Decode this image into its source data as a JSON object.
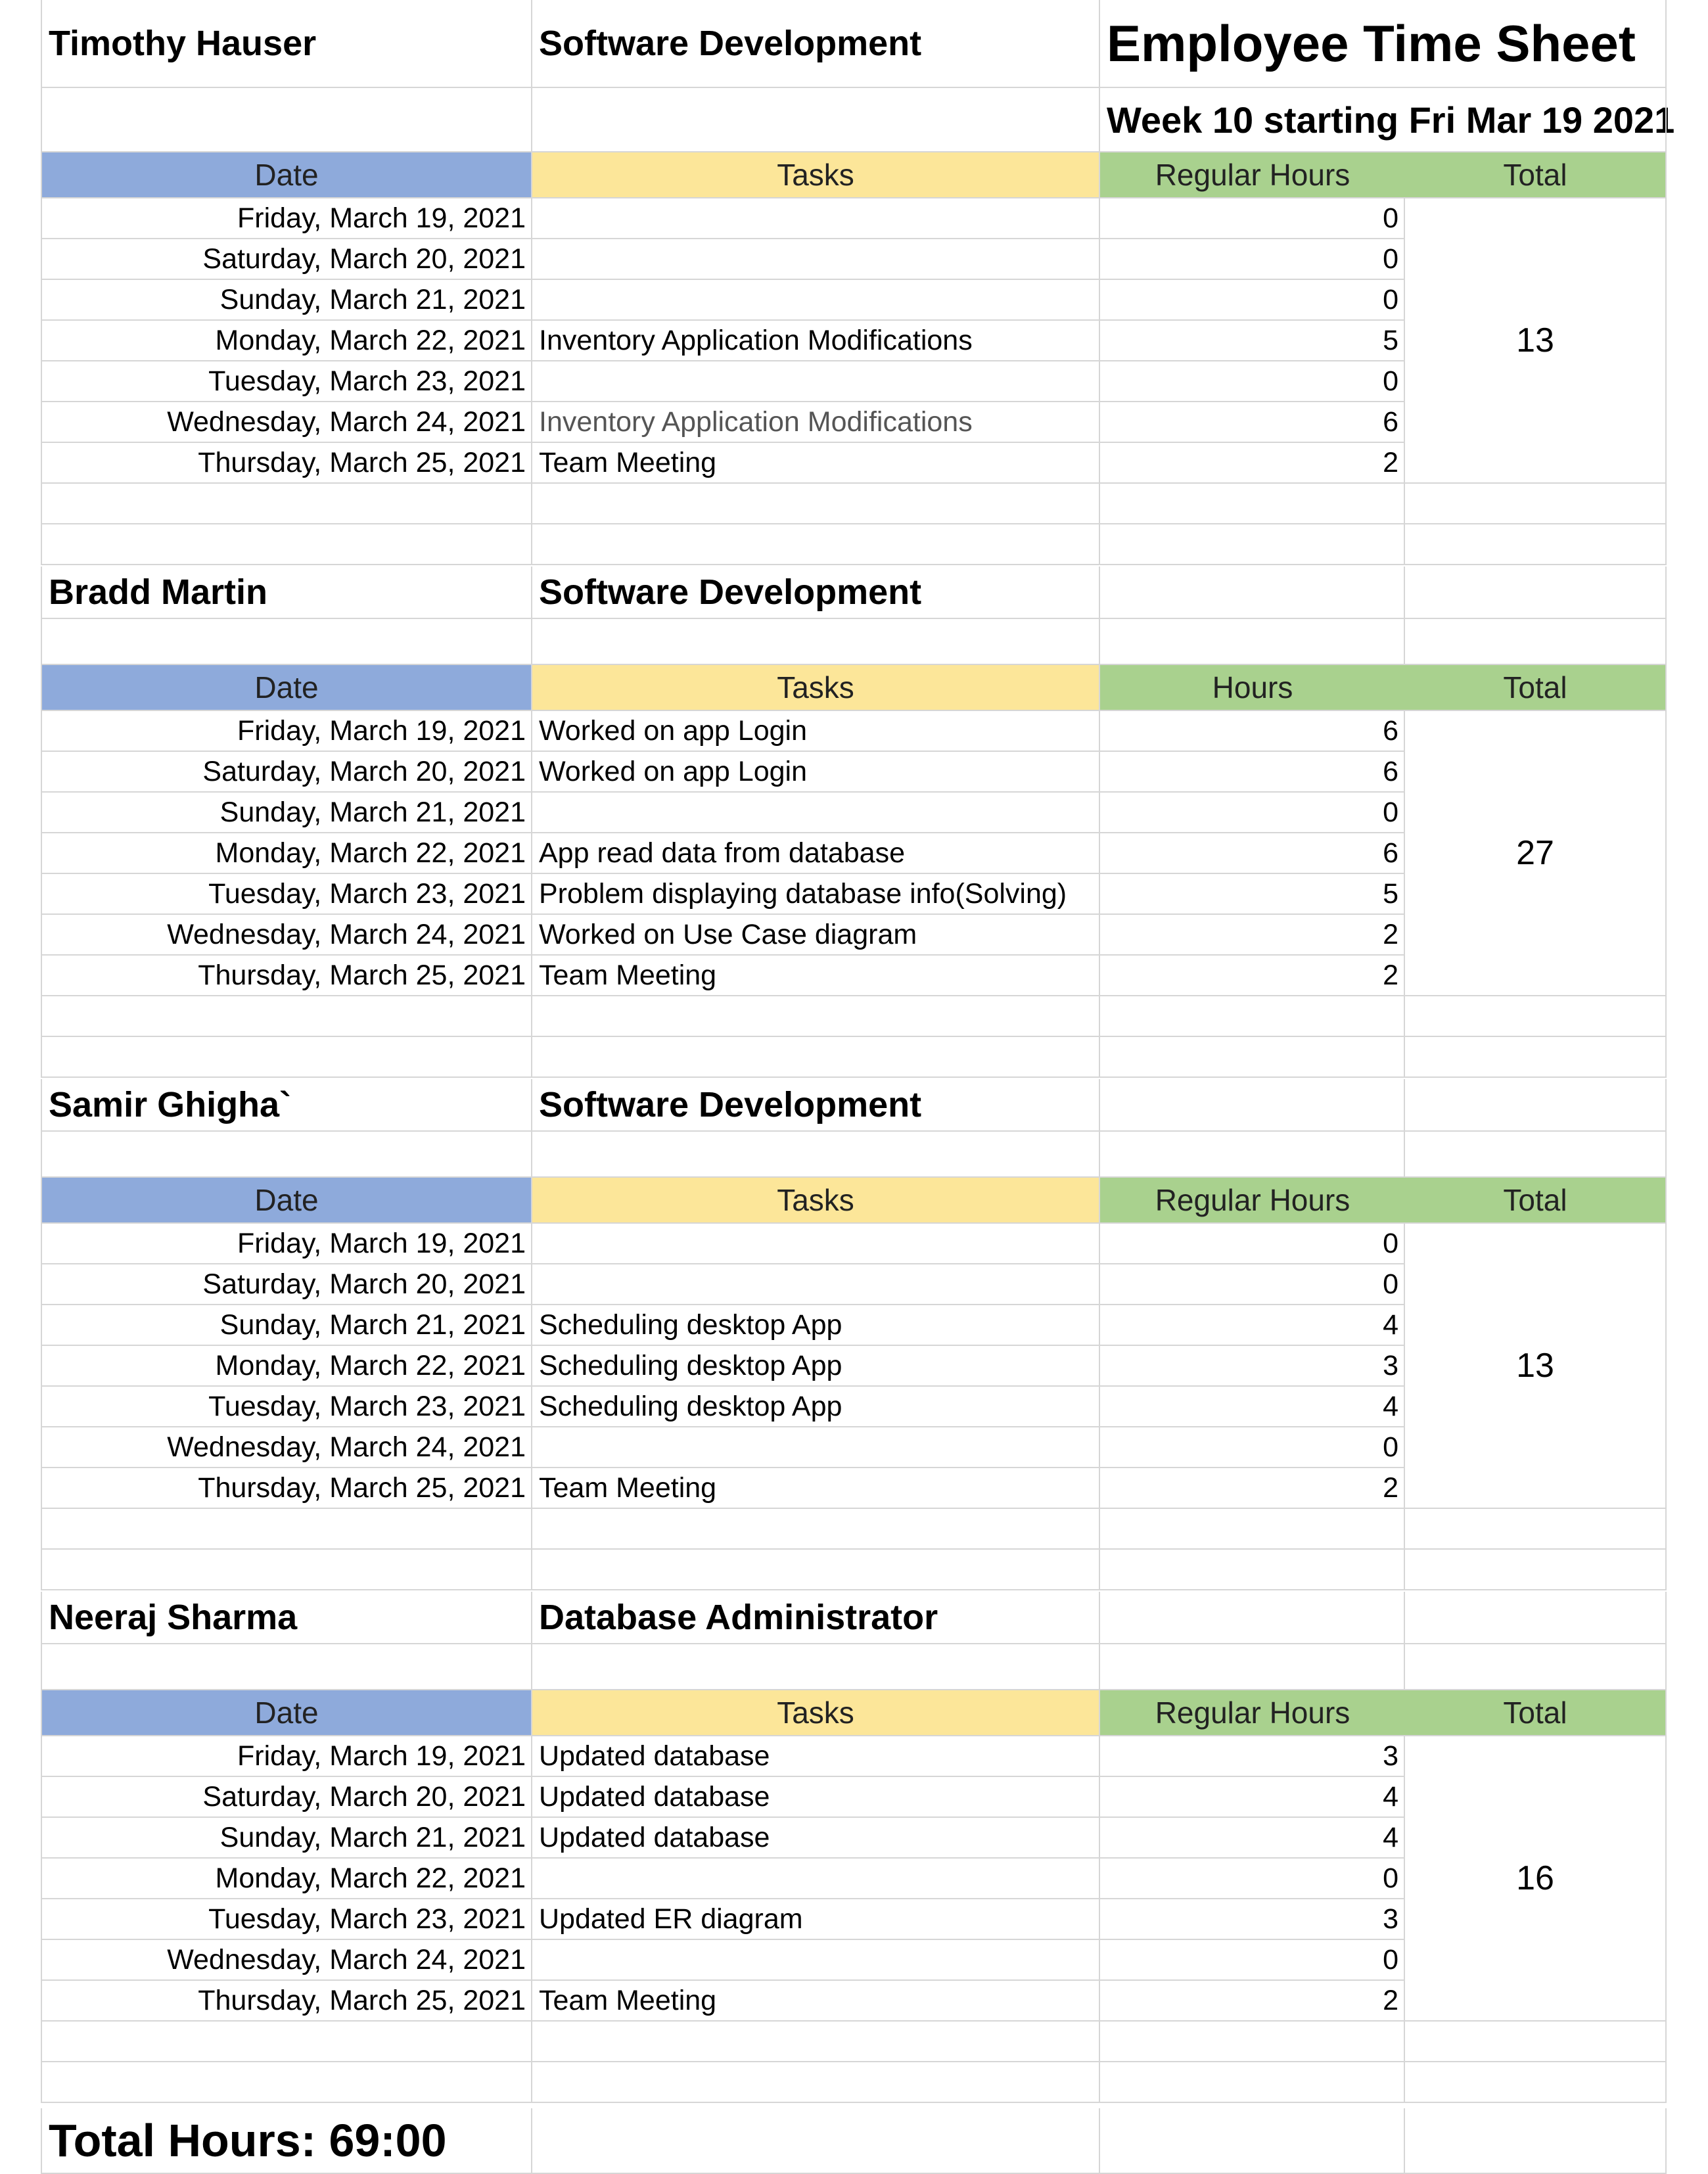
{
  "title": "Employee Time Sheet",
  "subtitle": "Week 10 starting Fri Mar 19 2021",
  "columns": {
    "date": "Date",
    "tasks": "Tasks",
    "regular_hours": "Regular Hours",
    "hours": "Hours",
    "total": "Total"
  },
  "employees": [
    {
      "name": "Timothy Hauser",
      "department": "Software Development",
      "hours_header": "Regular Hours",
      "total": "13",
      "rows": [
        {
          "date": "Friday, March 19, 2021",
          "task": "",
          "hours": "0"
        },
        {
          "date": "Saturday, March 20, 2021",
          "task": "",
          "hours": "0"
        },
        {
          "date": "Sunday, March 21, 2021",
          "task": "",
          "hours": "0"
        },
        {
          "date": "Monday, March 22, 2021",
          "task": "Inventory Application Modifications",
          "hours": "5"
        },
        {
          "date": "Tuesday, March 23, 2021",
          "task": "",
          "hours": "0"
        },
        {
          "date": "Wednesday, March 24, 2021",
          "task": "Inventory Application Modifications",
          "hours": "6"
        },
        {
          "date": "Thursday, March 25, 2021",
          "task": "Team Meeting",
          "hours": "2"
        }
      ]
    },
    {
      "name": "Bradd Martin",
      "department": "Software Development",
      "hours_header": "Hours",
      "total": "27",
      "rows": [
        {
          "date": "Friday, March 19, 2021",
          "task": "Worked on app Login",
          "hours": "6"
        },
        {
          "date": "Saturday, March 20, 2021",
          "task": "Worked on app Login",
          "hours": "6"
        },
        {
          "date": "Sunday, March 21, 2021",
          "task": "",
          "hours": "0"
        },
        {
          "date": "Monday, March 22, 2021",
          "task": "App read data from database",
          "hours": "6"
        },
        {
          "date": "Tuesday, March 23, 2021",
          "task": "Problem displaying database info(Solving)",
          "hours": "5"
        },
        {
          "date": "Wednesday, March 24, 2021",
          "task": "Worked on Use Case diagram",
          "hours": "2"
        },
        {
          "date": "Thursday, March 25, 2021",
          "task": "Team Meeting",
          "hours": "2"
        }
      ]
    },
    {
      "name": "Samir Ghigha`",
      "department": "Software Development",
      "hours_header": "Regular Hours",
      "total": "13",
      "rows": [
        {
          "date": "Friday, March 19, 2021",
          "task": "",
          "hours": "0"
        },
        {
          "date": "Saturday, March 20, 2021",
          "task": "",
          "hours": "0"
        },
        {
          "date": "Sunday, March 21, 2021",
          "task": "Scheduling desktop App",
          "hours": "4"
        },
        {
          "date": "Monday, March 22, 2021",
          "task": "Scheduling desktop App",
          "hours": "3"
        },
        {
          "date": "Tuesday, March 23, 2021",
          "task": "Scheduling desktop App",
          "hours": "4"
        },
        {
          "date": "Wednesday, March 24, 2021",
          "task": "",
          "hours": "0"
        },
        {
          "date": "Thursday, March 25, 2021",
          "task": "Team Meeting",
          "hours": "2"
        }
      ]
    },
    {
      "name": "Neeraj Sharma",
      "department": "Database Administrator",
      "hours_header": "Regular Hours",
      "total": "16",
      "rows": [
        {
          "date": "Friday, March 19, 2021",
          "task": "Updated database",
          "hours": "3"
        },
        {
          "date": "Saturday, March 20, 2021",
          "task": "Updated database",
          "hours": "4"
        },
        {
          "date": "Sunday, March 21, 2021",
          "task": "Updated database",
          "hours": "4"
        },
        {
          "date": "Monday, March 22, 2021",
          "task": "",
          "hours": "0"
        },
        {
          "date": "Tuesday, March 23, 2021",
          "task": "Updated ER diagram",
          "hours": "3"
        },
        {
          "date": "Wednesday, March 24, 2021",
          "task": "",
          "hours": "0"
        },
        {
          "date": "Thursday, March 25, 2021",
          "task": "Team Meeting",
          "hours": "2"
        }
      ]
    }
  ],
  "grand_total_label": "Total Hours: 69:00"
}
